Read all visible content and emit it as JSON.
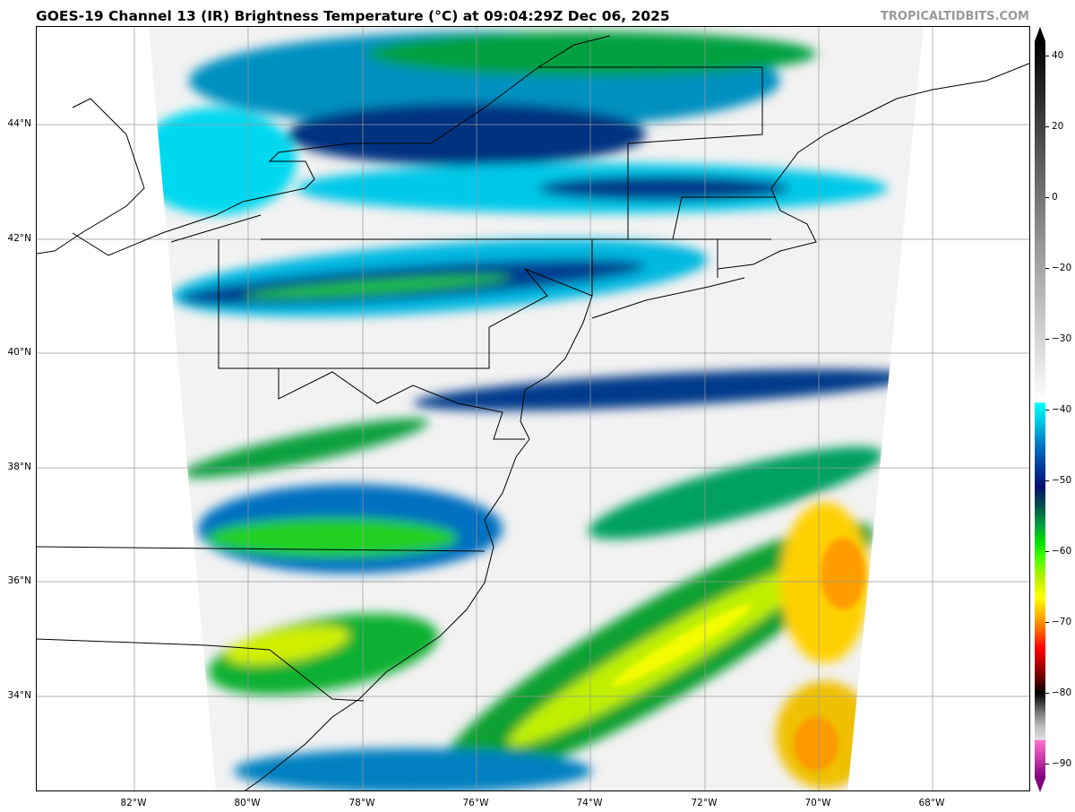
{
  "header": {
    "title": "GOES-19 Channel 13 (IR) Brightness Temperature (°C) at 09:04:29Z Dec 06, 2025",
    "brand": "TROPICALTIDBITS.COM"
  },
  "map": {
    "lat_labels": [
      "44°N",
      "42°N",
      "40°N",
      "38°N",
      "36°N",
      "34°N"
    ],
    "lon_labels": [
      "82°W",
      "80°W",
      "78°W",
      "76°W",
      "74°W",
      "72°W",
      "70°W",
      "68°W"
    ]
  },
  "colorbar": {
    "tick_labels": [
      "40",
      "20",
      "0",
      "−20",
      "−30",
      "−40",
      "−50",
      "−60",
      "−70",
      "−80",
      "−90"
    ],
    "colors": {
      "warm": "#000000",
      "neutral": "#ffffff",
      "cold_start": "#00ffff",
      "blue": "#001070",
      "green": "#00e000",
      "yellow": "#ffff00",
      "red": "#ff0000",
      "pink": "#ff70d0",
      "purple": "#800080"
    }
  }
}
